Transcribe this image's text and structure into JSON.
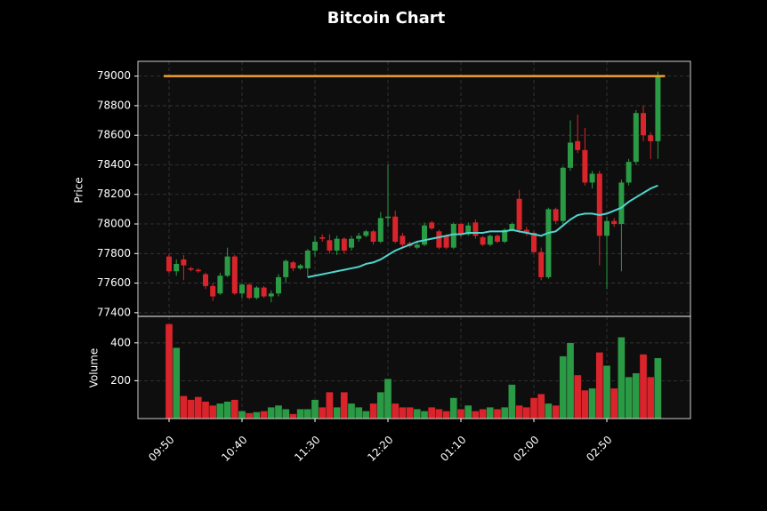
{
  "chart_data": {
    "type": "candlestick",
    "title": "Bitcoin Chart",
    "ylabel": "Price",
    "categories": [
      "09:50",
      null,
      null,
      null,
      null,
      null,
      null,
      null,
      null,
      null,
      "10:40",
      null,
      null,
      null,
      null,
      null,
      null,
      null,
      null,
      null,
      "11:30",
      null,
      null,
      null,
      null,
      null,
      null,
      null,
      null,
      null,
      "12:20",
      null,
      null,
      null,
      null,
      null,
      null,
      null,
      null,
      null,
      "01:10",
      null,
      null,
      null,
      null,
      null,
      null,
      null,
      null,
      null,
      "02:00",
      null,
      null,
      null,
      null,
      null,
      null,
      null,
      null,
      null,
      "02:50",
      null,
      null,
      null,
      null,
      null,
      null,
      null
    ],
    "open": [
      77780,
      77680,
      77760,
      77700,
      77690,
      77660,
      77580,
      77530,
      77650,
      77780,
      77530,
      77590,
      77500,
      77570,
      77510,
      77530,
      77640,
      77740,
      77700,
      77700,
      77820,
      77910,
      77890,
      77820,
      77900,
      77840,
      77900,
      77920,
      77950,
      77880,
      78040,
      78050,
      77920,
      77870,
      77840,
      77860,
      78010,
      77950,
      77920,
      77840,
      78000,
      77930,
      78010,
      77910,
      77860,
      77920,
      77880,
      77960,
      78170,
      77960,
      77940,
      77810,
      77640,
      78100,
      78020,
      78380,
      78560,
      78500,
      78280,
      78340,
      77920,
      78020,
      78000,
      78280,
      78420,
      78750,
      78600,
      78560
    ],
    "high": [
      77800,
      77760,
      77790,
      77710,
      77700,
      77670,
      77600,
      77670,
      77840,
      77790,
      77600,
      77600,
      77580,
      77580,
      77550,
      77660,
      77760,
      77750,
      77730,
      77830,
      77920,
      77930,
      77930,
      77920,
      77910,
      77920,
      77940,
      77960,
      77960,
      78080,
      78400,
      78090,
      77940,
      77880,
      77880,
      78010,
      78020,
      77960,
      77930,
      78010,
      78010,
      78010,
      78030,
      77920,
      77930,
      77930,
      77970,
      78010,
      78230,
      77980,
      77950,
      77840,
      78110,
      78110,
      78390,
      78700,
      78740,
      78650,
      78360,
      78360,
      78050,
      78040,
      78300,
      78440,
      78770,
      78800,
      78620,
      79030
    ],
    "low": [
      77670,
      77650,
      77620,
      77680,
      77670,
      77560,
      77480,
      77520,
      77640,
      77520,
      77500,
      77490,
      77490,
      77500,
      77470,
      77510,
      77600,
      77680,
      77690,
      77640,
      77780,
      77880,
      77800,
      77790,
      77800,
      77820,
      77880,
      77910,
      77860,
      77870,
      77980,
      77870,
      77840,
      77840,
      77830,
      77850,
      77960,
      77830,
      77830,
      77830,
      77910,
      77920,
      77900,
      77850,
      77850,
      77870,
      77870,
      77950,
      77940,
      77920,
      77800,
      77620,
      77630,
      78000,
      78000,
      78360,
      78480,
      78260,
      78240,
      77720,
      77560,
      77980,
      77680,
      78260,
      78400,
      78560,
      78440,
      78440
    ],
    "close": [
      77680,
      77730,
      77720,
      77690,
      77680,
      77580,
      77510,
      77650,
      77780,
      77530,
      77590,
      77500,
      77570,
      77510,
      77530,
      77640,
      77750,
      77700,
      77720,
      77820,
      77880,
      77900,
      77820,
      77900,
      77820,
      77900,
      77920,
      77950,
      77880,
      78040,
      78050,
      77880,
      77860,
      77850,
      77860,
      77990,
      77970,
      77840,
      77840,
      78000,
      77930,
      77990,
      77920,
      77860,
      77920,
      77880,
      77960,
      78000,
      77960,
      77940,
      77810,
      77640,
      78100,
      78020,
      78380,
      78550,
      78500,
      78280,
      78340,
      77920,
      78020,
      78000,
      78280,
      78420,
      78750,
      78600,
      78560,
      79000
    ],
    "up_color": "#2a9a45",
    "down_color": "#d9242b",
    "moving_average": {
      "color": "#4fd6cf",
      "values": [
        null,
        null,
        null,
        null,
        null,
        null,
        null,
        null,
        null,
        null,
        null,
        null,
        null,
        null,
        null,
        null,
        null,
        null,
        null,
        77640,
        77650,
        77660,
        77670,
        77680,
        77690,
        77700,
        77710,
        77730,
        77740,
        77760,
        77790,
        77820,
        77840,
        77860,
        77880,
        77890,
        77900,
        77910,
        77920,
        77930,
        77930,
        77940,
        77940,
        77940,
        77950,
        77950,
        77950,
        77960,
        77950,
        77940,
        77930,
        77920,
        77940,
        77950,
        77990,
        78030,
        78060,
        78070,
        78070,
        78060,
        78070,
        78090,
        78110,
        78150,
        78180,
        78210,
        78240,
        78260
      ]
    },
    "hline": {
      "value": 79000,
      "color": "#f0a030"
    },
    "ylim": [
      77375,
      79100
    ],
    "yticks": [
      77400,
      77600,
      77800,
      78000,
      78200,
      78400,
      78600,
      78800,
      79000
    ],
    "grid": true,
    "volume": {
      "ylabel": "Volume",
      "ylim": [
        0,
        540
      ],
      "yticks": [
        200,
        400
      ],
      "values": [
        500,
        375,
        120,
        100,
        115,
        90,
        70,
        80,
        90,
        100,
        40,
        30,
        35,
        40,
        60,
        70,
        50,
        25,
        50,
        50,
        100,
        60,
        140,
        60,
        140,
        80,
        60,
        40,
        80,
        140,
        210,
        80,
        60,
        60,
        50,
        40,
        60,
        50,
        40,
        110,
        50,
        70,
        40,
        50,
        60,
        50,
        60,
        180,
        70,
        60,
        110,
        130,
        80,
        70,
        330,
        400,
        230,
        150,
        160,
        350,
        280,
        160,
        430,
        220,
        240,
        340,
        220,
        320
      ]
    }
  }
}
